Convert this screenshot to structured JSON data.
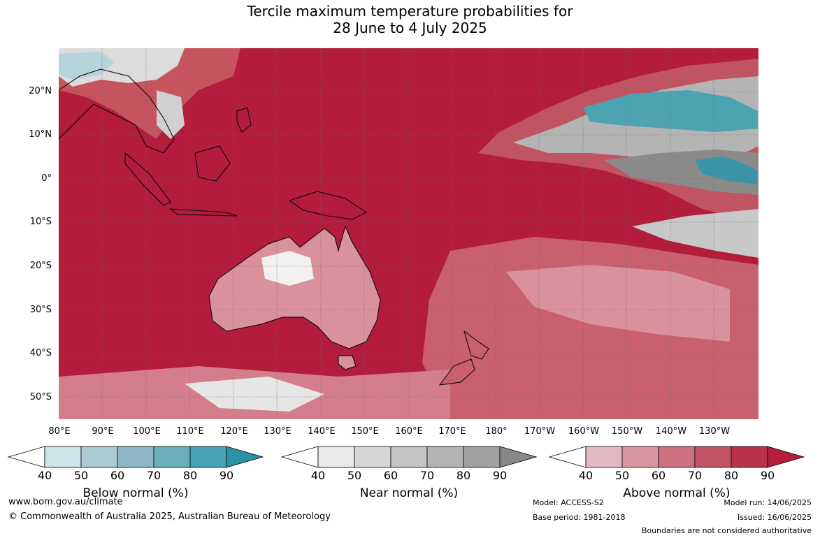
{
  "title": {
    "line1": "Tercile maximum temperature probabilities for",
    "line2": "28 June to 4 July 2025"
  },
  "lat_labels": [
    "20°N",
    "10°N",
    "0°",
    "10°S",
    "20°S",
    "30°S",
    "40°S",
    "50°S"
  ],
  "lon_labels": [
    "80°E",
    "90°E",
    "100°E",
    "110°E",
    "120°E",
    "130°E",
    "140°E",
    "150°E",
    "160°E",
    "170°E",
    "180°",
    "170°W",
    "160°W",
    "150°W",
    "140°W",
    "130°W"
  ],
  "colorbars": [
    {
      "title": "Below normal (%)",
      "ticks": [
        "40",
        "50",
        "60",
        "70",
        "80",
        "90"
      ],
      "colors": [
        "#ffffff",
        "#cde3ea",
        "#abcbd2",
        "#8db7c4",
        "#6aaeb9",
        "#46a2b4",
        "#2b93a5"
      ]
    },
    {
      "title": "Near normal (%)",
      "ticks": [
        "40",
        "50",
        "60",
        "70",
        "80",
        "90"
      ],
      "colors": [
        "#ffffff",
        "#e9e9e9",
        "#d6d6d6",
        "#c4c4c4",
        "#b3b3b3",
        "#a1a1a1",
        "#888888"
      ]
    },
    {
      "title": "Above normal (%)",
      "ticks": [
        "40",
        "50",
        "60",
        "70",
        "80",
        "90"
      ],
      "colors": [
        "#ffffff",
        "#e2b8c1",
        "#d7959f",
        "#cb727e",
        "#c05462",
        "#b9324a",
        "#b21e3c"
      ]
    }
  ],
  "footer": {
    "website": "www.bom.gov.au/climate",
    "copyright": "© Commonwealth of Australia 2025, Australian Bureau of Meteorology",
    "model": "Model: ACCESS-S2",
    "base_period": "Base period: 1981-2018",
    "model_run": "Model run: 14/06/2025",
    "issued": "Issued: 16/06/2025",
    "disclaimer": "Boundaries are not considered authoritative"
  }
}
